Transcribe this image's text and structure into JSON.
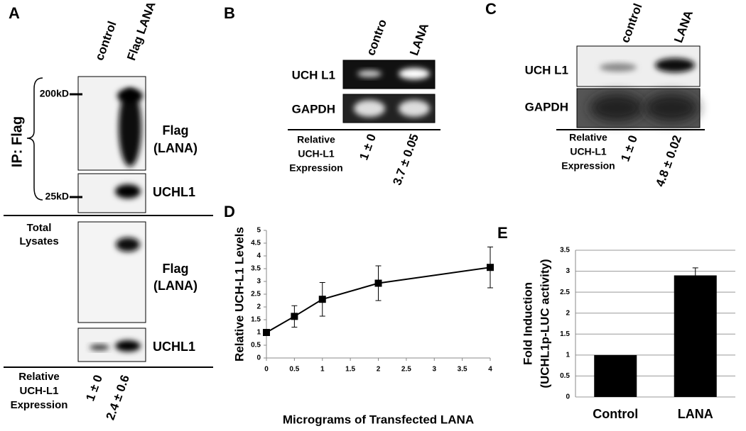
{
  "panel_a": {
    "label": "A",
    "lanes": [
      "control",
      "Flag LANA"
    ],
    "ip_label": "IP: Flag",
    "markers": [
      "200kD",
      "25kD"
    ],
    "ip_blots": [
      [
        "Flag",
        "(LANA)"
      ],
      [
        "UCHL1"
      ]
    ],
    "total_label": [
      "Total",
      "Lysates"
    ],
    "total_blots": [
      [
        "Flag",
        "(LANA)"
      ],
      [
        "UCHL1"
      ]
    ],
    "relative_label": [
      "Relative",
      "UCH-L1",
      "Expression"
    ],
    "relative_values": [
      "1 ± 0",
      "2.4 ± 0.6"
    ]
  },
  "panel_b": {
    "label": "B",
    "lanes": [
      "contro",
      "LANA"
    ],
    "blots": [
      "UCH L1",
      "GAPDH"
    ],
    "relative_label": [
      "Relative",
      "UCH-L1",
      "Expression"
    ],
    "relative_values": [
      "1 ± 0",
      "3.7 ± 0.05"
    ]
  },
  "panel_c": {
    "label": "C",
    "lanes": [
      "control",
      "LANA"
    ],
    "blots": [
      "UCH L1",
      "GAPDH"
    ],
    "relative_label": [
      "Relative",
      "UCH-L1",
      "Expression"
    ],
    "relative_values": [
      "1 ± 0",
      "4.8 ± 0.02"
    ]
  },
  "chart_data": [
    {
      "type": "line",
      "panel": "D",
      "x": [
        0,
        0.5,
        1,
        2,
        4
      ],
      "values": [
        1,
        1.63,
        2.3,
        2.93,
        3.55
      ],
      "errors": [
        null,
        0.42,
        0.66,
        0.68,
        0.8
      ],
      "x_label": "Micrograms of Transfected LANA",
      "y_label": "Relative UCH-L1 Levels",
      "xlim": [
        0,
        4
      ],
      "xticks": [
        0,
        0.5,
        1,
        1.5,
        2,
        2.5,
        3,
        3.5,
        4
      ],
      "ylim": [
        0,
        5
      ],
      "yticks": [
        0,
        0.5,
        1,
        1.5,
        2,
        2.5,
        3,
        3.5,
        4,
        4.5,
        5
      ],
      "color": "#000000"
    },
    {
      "type": "bar",
      "panel": "E",
      "categories": [
        "Control",
        "LANA"
      ],
      "values": [
        1,
        2.9
      ],
      "errors": [
        null,
        0.18
      ],
      "y_label": [
        "Fold Induction",
        "(UCHL1p-LUC activity)"
      ],
      "ylim": [
        0,
        3.5
      ],
      "yticks": [
        0,
        0.5,
        1,
        1.5,
        2,
        2.5,
        3,
        3.5
      ],
      "grid": true,
      "color": "#000000"
    }
  ]
}
